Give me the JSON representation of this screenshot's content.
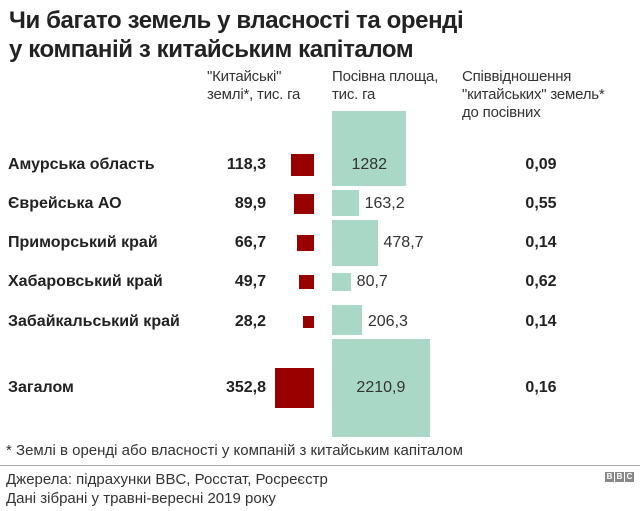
{
  "title_line1": "Чи багато земель у власності та оренді",
  "title_line2": "у компаній з китайським капіталом",
  "headers": {
    "chinese_line1": "\"Китайські\"",
    "chinese_line2": "землі*, тис. га",
    "sown_line1": "Посівна площа,",
    "sown_line2": "тис. га",
    "ratio_line1": "Співвідношення",
    "ratio_line2": "\"китайських\" земель*",
    "ratio_line3": "до посівних"
  },
  "colors": {
    "chinese": "#990000",
    "sown": "#a9d8c6"
  },
  "chart_data": {
    "type": "table",
    "encoding": "square area proportional to value",
    "rows": [
      {
        "region": "Амурська область",
        "chinese": 118.3,
        "chinese_label": "118,3",
        "sown": 1282,
        "sown_label": "1282",
        "ratio": "0,09"
      },
      {
        "region": "Єврейська АО",
        "chinese": 89.9,
        "chinese_label": "89,9",
        "sown": 163.2,
        "sown_label": "163,2",
        "ratio": "0,55"
      },
      {
        "region": "Приморський край",
        "chinese": 66.7,
        "chinese_label": "66,7",
        "sown": 478.7,
        "sown_label": "478,7",
        "ratio": "0,14"
      },
      {
        "region": "Хабаровський край",
        "chinese": 49.7,
        "chinese_label": "49,7",
        "sown": 80.7,
        "sown_label": "80,7",
        "ratio": "0,62"
      },
      {
        "region": "Забайкальський край",
        "chinese": 28.2,
        "chinese_label": "28,2",
        "sown": 206.3,
        "sown_label": "206,3",
        "ratio": "0,14"
      },
      {
        "region": "Загалом",
        "chinese": 352.8,
        "chinese_label": "352,8",
        "sown": 2210.9,
        "sown_label": "2210,9",
        "ratio": "0,16"
      }
    ]
  },
  "footnote": "* Землі в оренді або власності у компаній з китайським капіталом",
  "source_line1": "Джерела: підрахунки BBC, Росстат, Росреєстр",
  "source_line2": "Дані зібрані у травні-вересні 2019 року",
  "logo": "BBC"
}
